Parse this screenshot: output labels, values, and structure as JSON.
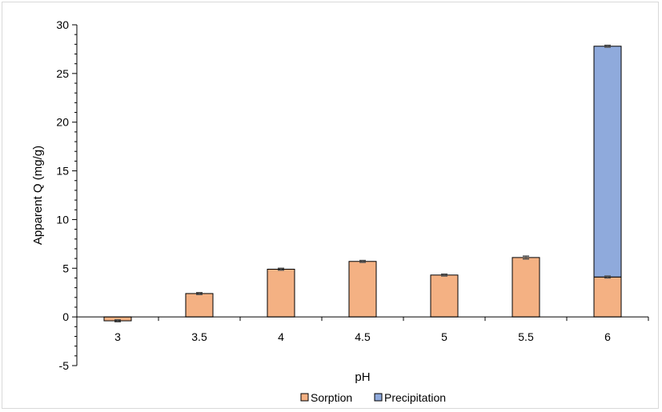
{
  "chart_data": {
    "type": "bar",
    "stacked": true,
    "categories": [
      "3",
      "3.5",
      "4",
      "4.5",
      "5",
      "5.5",
      "6"
    ],
    "series": [
      {
        "name": "Sorption",
        "color": "#F4B183",
        "values": [
          -0.4,
          2.4,
          4.9,
          5.7,
          4.3,
          6.1,
          4.1
        ],
        "errors": [
          0.1,
          0.1,
          0.1,
          0.1,
          0.1,
          0.15,
          0.1
        ]
      },
      {
        "name": "Precipitation",
        "color": "#8FAADC",
        "values": [
          0,
          0,
          0,
          0,
          0,
          0,
          23.7
        ],
        "errors": [
          0,
          0,
          0,
          0,
          0,
          0,
          0.1
        ]
      }
    ],
    "xlabel": "pH",
    "ylabel": "Apparent Q (mg/g)",
    "ylim": [
      -5,
      30
    ],
    "yticks": [
      "-5",
      "0",
      "5",
      "10",
      "15",
      "20",
      "25",
      "30"
    ],
    "grid": false,
    "legend": "bottom"
  }
}
